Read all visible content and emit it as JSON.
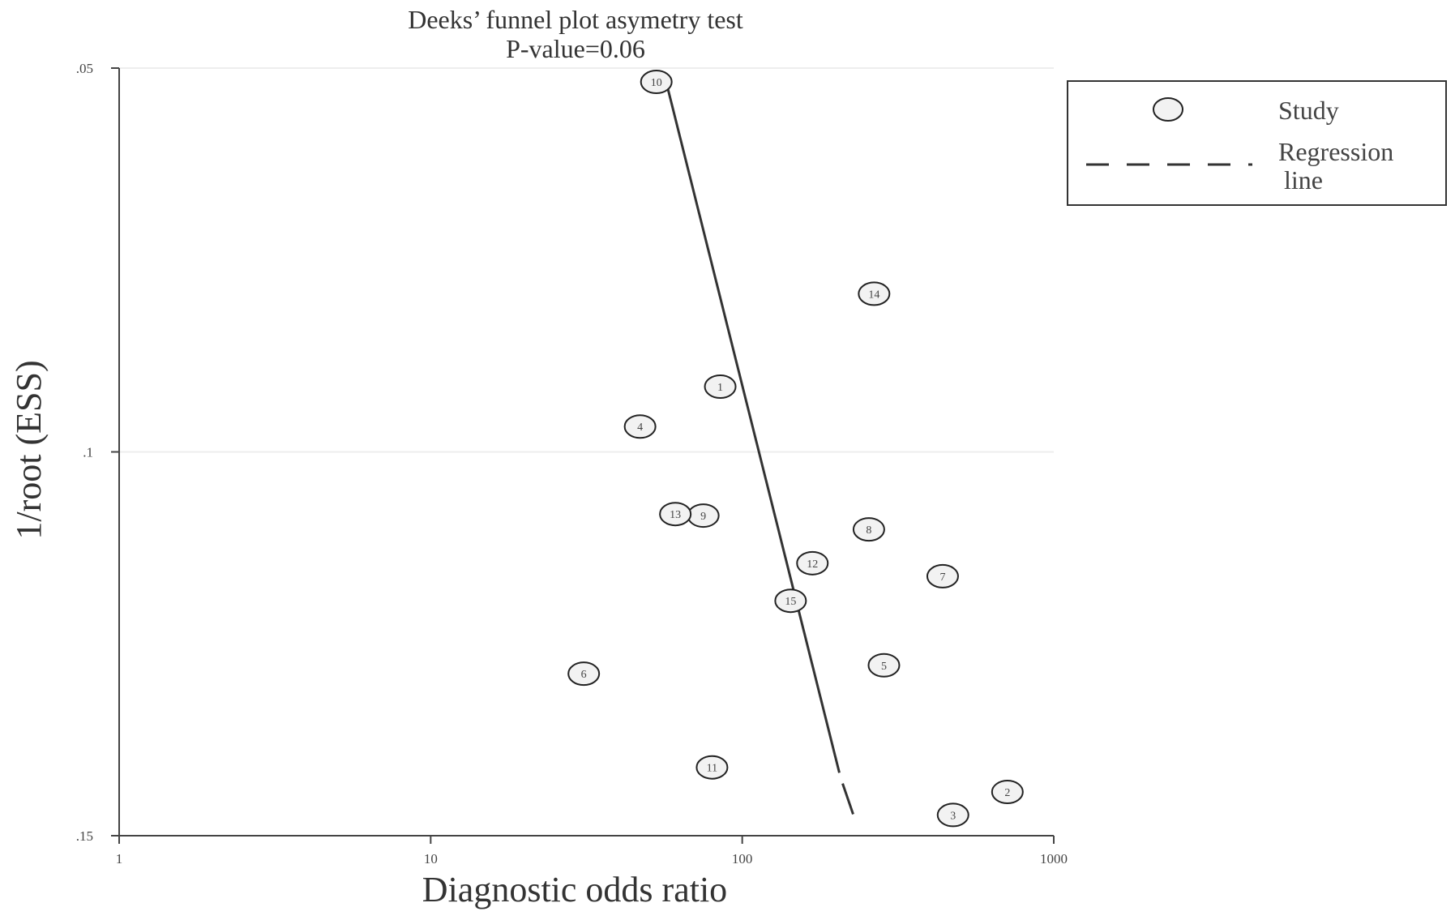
{
  "chart_data": {
    "type": "scatter",
    "title": "Deeks’ funnel plot asymetry test",
    "subtitle": "P-value=0.06",
    "xlabel": "Diagnostic odds ratio",
    "ylabel": "1/root (ESS)",
    "x_scale": "log",
    "xlim": [
      1,
      1000
    ],
    "ylim": [
      0.05,
      0.15
    ],
    "y_reversed": true,
    "x_ticks": [
      {
        "value": 1,
        "label": "1"
      },
      {
        "value": 10,
        "label": "10"
      },
      {
        "value": 100,
        "label": "100"
      },
      {
        "value": 1000,
        "label": "1000"
      }
    ],
    "y_ticks": [
      {
        "value": 0.05,
        "label": ".05"
      },
      {
        "value": 0.1,
        "label": ".1"
      },
      {
        "value": 0.15,
        "label": ".15"
      }
    ],
    "grid": {
      "horizontal": true,
      "vertical": false
    },
    "points": [
      {
        "label": "1",
        "x": 85,
        "y": 0.0915
      },
      {
        "label": "2",
        "x": 710,
        "y": 0.1443
      },
      {
        "label": "3",
        "x": 475,
        "y": 0.1473
      },
      {
        "label": "4",
        "x": 47,
        "y": 0.0967
      },
      {
        "label": "5",
        "x": 285,
        "y": 0.1278
      },
      {
        "label": "6",
        "x": 31,
        "y": 0.1289
      },
      {
        "label": "7",
        "x": 440,
        "y": 0.1162
      },
      {
        "label": "8",
        "x": 255,
        "y": 0.1101
      },
      {
        "label": "9",
        "x": 75,
        "y": 0.1083
      },
      {
        "label": "10",
        "x": 53,
        "y": 0.0518
      },
      {
        "label": "11",
        "x": 80,
        "y": 0.1411
      },
      {
        "label": "12",
        "x": 168,
        "y": 0.1145
      },
      {
        "label": "13",
        "x": 61,
        "y": 0.1081
      },
      {
        "label": "14",
        "x": 265,
        "y": 0.0794
      },
      {
        "label": "15",
        "x": 143,
        "y": 0.1194
      }
    ],
    "regression_line": {
      "solid": {
        "start": {
          "x": 57,
          "y": 0.0518
        },
        "end": {
          "x": 205,
          "y": 0.1418
        }
      },
      "dashed": {
        "start": {
          "x": 210,
          "y": 0.1432
        },
        "end": {
          "x": 227,
          "y": 0.1472
        }
      }
    },
    "legend": {
      "position": "right",
      "items": [
        {
          "kind": "marker",
          "label": "Study"
        },
        {
          "kind": "dashed-line",
          "label_lines": [
            "Regression",
            "line"
          ]
        }
      ]
    },
    "colors": {
      "axis": "#444444",
      "grid": "#eeeeee",
      "marker_fill": "#f2f2f2",
      "marker_stroke": "#222222",
      "line": "#333333"
    }
  }
}
